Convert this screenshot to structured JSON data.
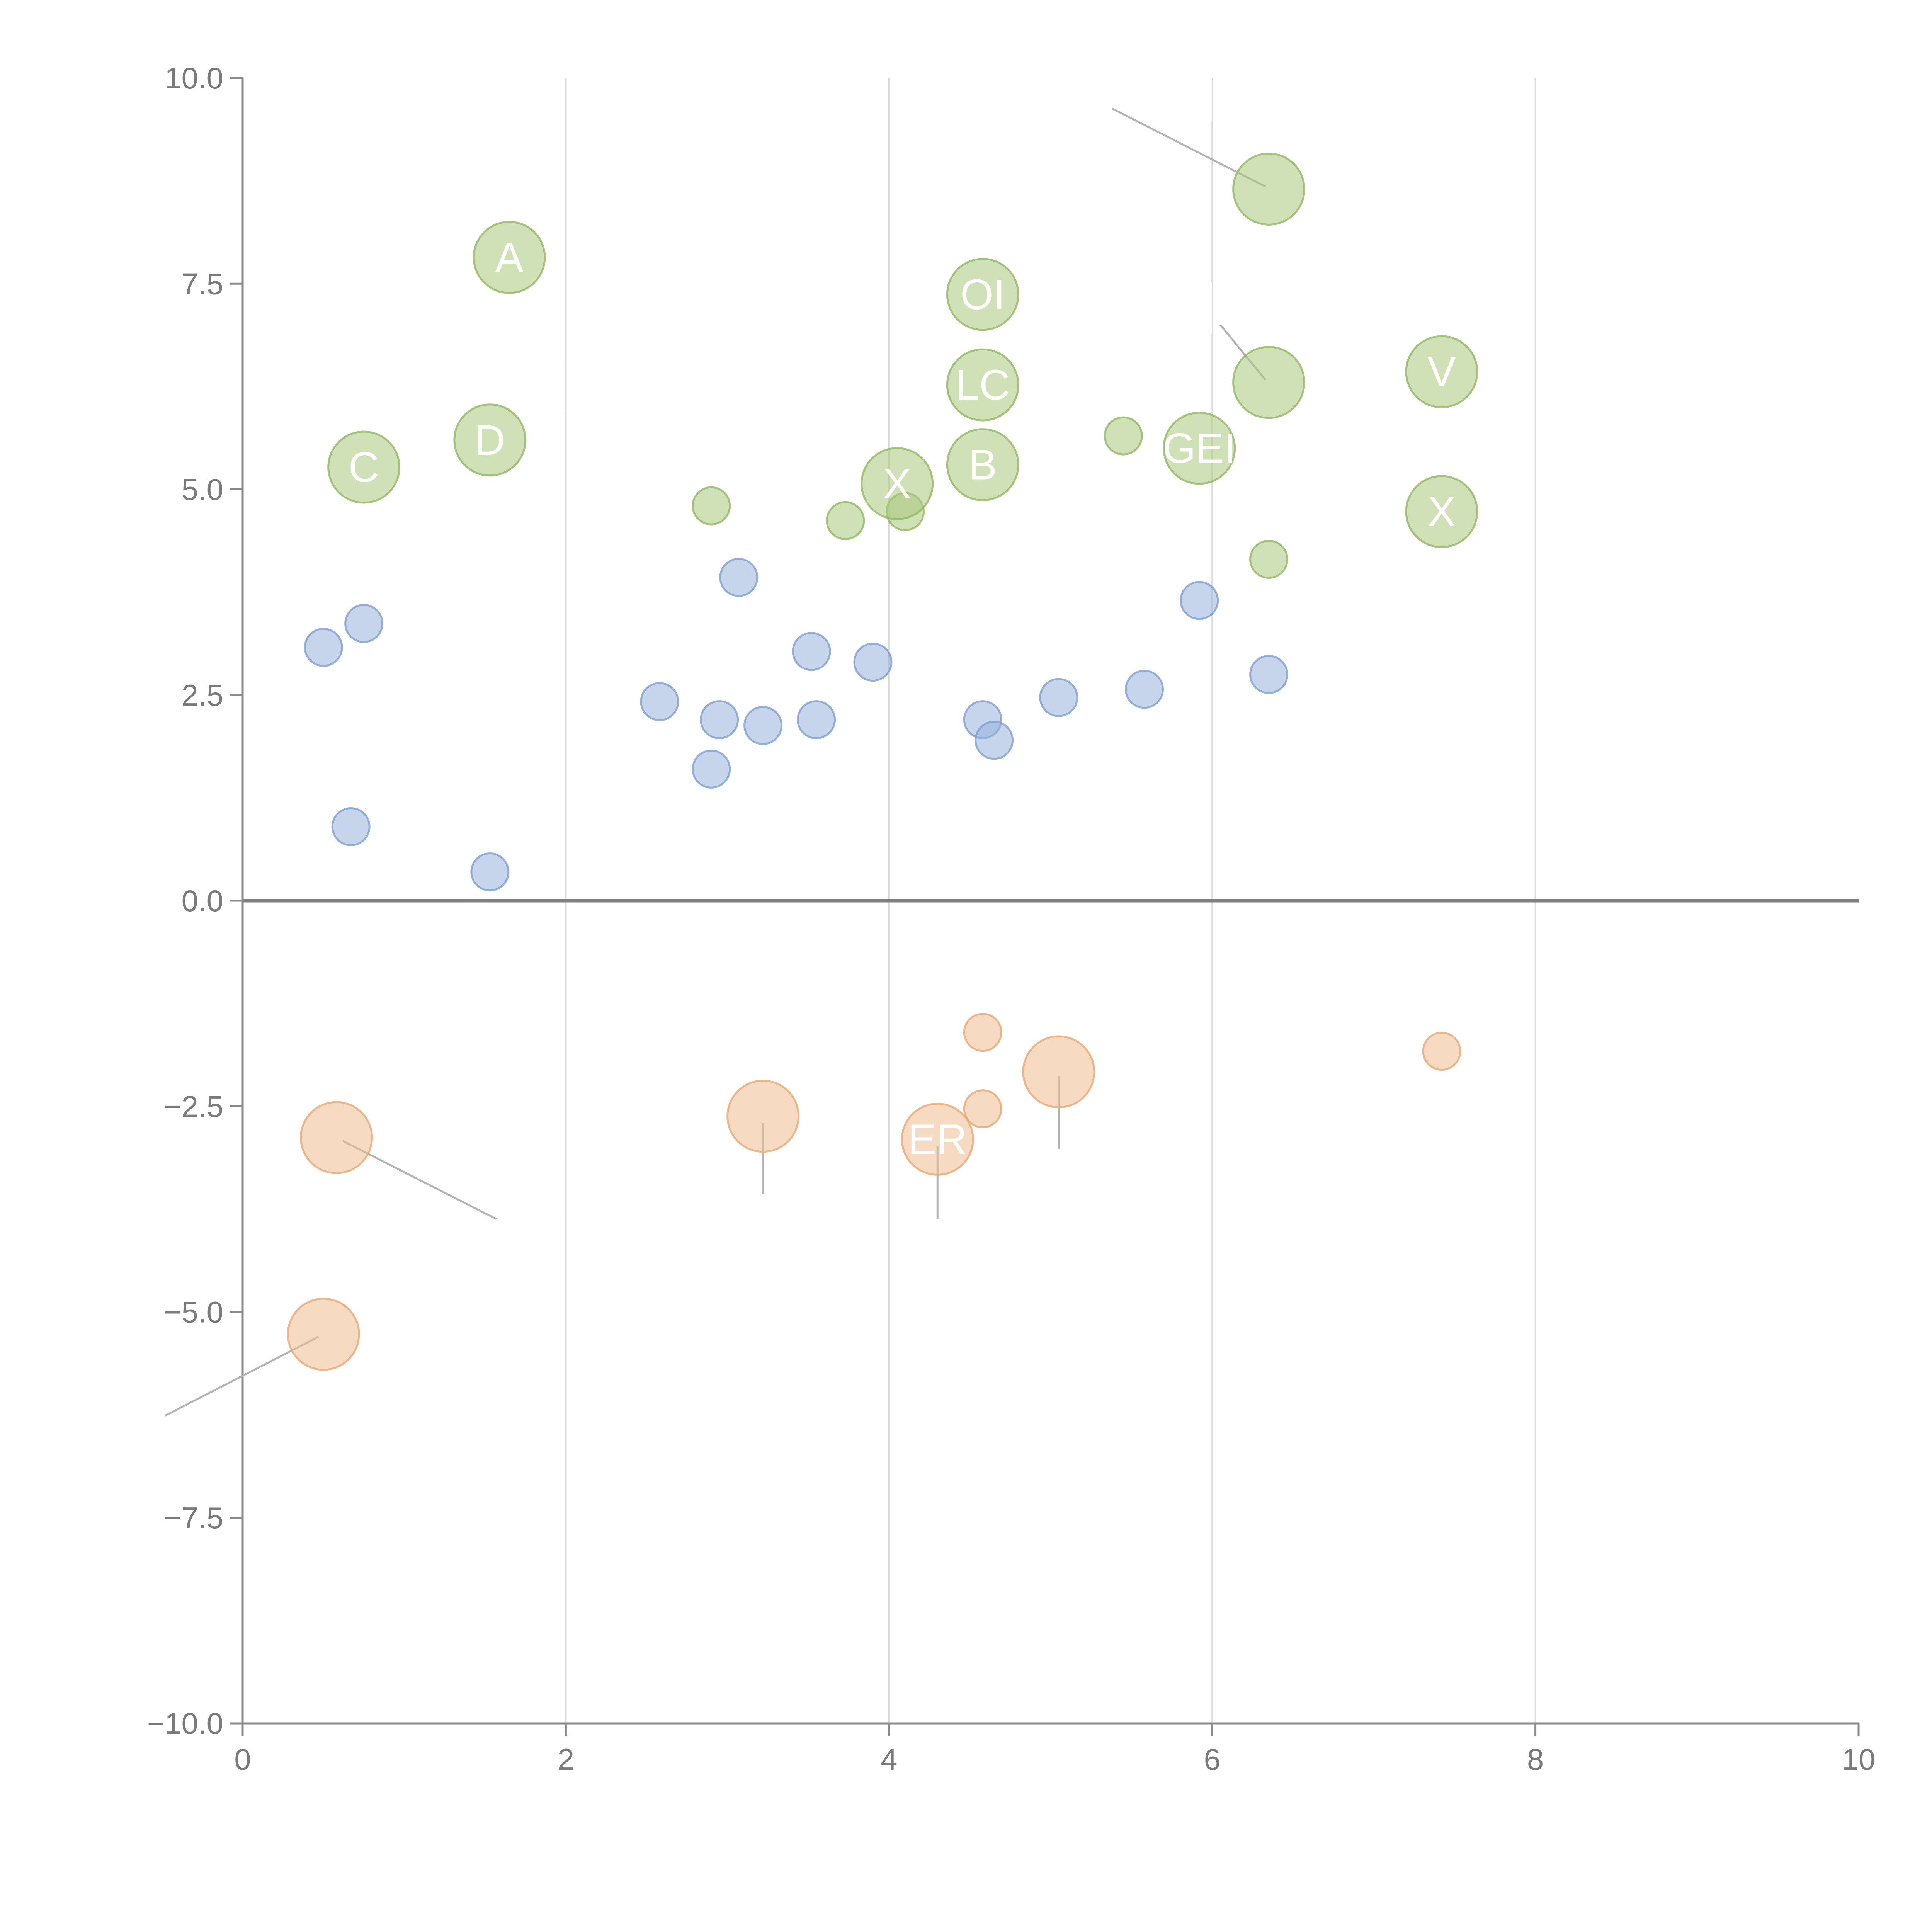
{
  "chart_data": {
    "type": "scatter",
    "title": "",
    "xlabel": "",
    "ylabel": "",
    "xlim": [
      0,
      10
    ],
    "ylim": [
      -10,
      10
    ],
    "x_ticks": [
      0,
      2,
      4,
      6,
      8,
      10
    ],
    "x_tick_labels": [
      "0",
      "2",
      "4",
      "6",
      "8",
      "10"
    ],
    "y_ticks": [
      10,
      7.5,
      5,
      2.5,
      0,
      -2.5,
      -5,
      -7.5,
      -10
    ],
    "y_tick_labels": [
      "10.0",
      "7.5",
      "5.0",
      "2.5",
      "0.0",
      "−2.5",
      "−5.0",
      "−7.5",
      "−10.0"
    ],
    "grid": "vertical",
    "zero_line": 0,
    "series": [
      {
        "name": "green",
        "color": "#a9c97c",
        "edge_color": "#92b763",
        "points": [
          {
            "x": 1.65,
            "y": 7.82,
            "size": "large",
            "label": "A"
          },
          {
            "x": 4.58,
            "y": 7.37,
            "size": "large",
            "label": "OI"
          },
          {
            "x": 6.35,
            "y": 8.65,
            "size": "large",
            "label": ""
          },
          {
            "x": 0.75,
            "y": 5.27,
            "size": "large",
            "label": "C"
          },
          {
            "x": 1.53,
            "y": 5.6,
            "size": "large",
            "label": "D"
          },
          {
            "x": 4.58,
            "y": 6.27,
            "size": "large",
            "label": "LC"
          },
          {
            "x": 6.35,
            "y": 6.3,
            "size": "large",
            "label": ""
          },
          {
            "x": 7.42,
            "y": 6.43,
            "size": "large",
            "label": "V"
          },
          {
            "x": 5.92,
            "y": 5.5,
            "size": "large",
            "label": "GEI"
          },
          {
            "x": 4.05,
            "y": 5.07,
            "size": "large",
            "label": "X"
          },
          {
            "x": 4.58,
            "y": 5.3,
            "size": "large",
            "label": "B"
          },
          {
            "x": 7.42,
            "y": 4.73,
            "size": "large",
            "label": "X"
          },
          {
            "x": 2.9,
            "y": 4.8,
            "size": "small",
            "label": ""
          },
          {
            "x": 3.73,
            "y": 4.62,
            "size": "small",
            "label": ""
          },
          {
            "x": 4.1,
            "y": 4.73,
            "size": "small",
            "label": ""
          },
          {
            "x": 5.45,
            "y": 5.65,
            "size": "small",
            "label": ""
          },
          {
            "x": 6.35,
            "y": 4.15,
            "size": "small",
            "label": ""
          }
        ]
      },
      {
        "name": "blue",
        "color": "#98b3dc",
        "edge_color": "#7e9fcf",
        "points": [
          {
            "x": 0.5,
            "y": 3.08,
            "size": "small",
            "label": ""
          },
          {
            "x": 0.75,
            "y": 3.37,
            "size": "small",
            "label": ""
          },
          {
            "x": 0.67,
            "y": 0.9,
            "size": "small",
            "label": ""
          },
          {
            "x": 1.53,
            "y": 0.35,
            "size": "small",
            "label": ""
          },
          {
            "x": 2.58,
            "y": 2.42,
            "size": "small",
            "label": ""
          },
          {
            "x": 2.9,
            "y": 1.6,
            "size": "small",
            "label": ""
          },
          {
            "x": 2.95,
            "y": 2.2,
            "size": "small",
            "label": ""
          },
          {
            "x": 3.07,
            "y": 3.93,
            "size": "small",
            "label": ""
          },
          {
            "x": 3.22,
            "y": 2.13,
            "size": "small",
            "label": ""
          },
          {
            "x": 3.52,
            "y": 3.03,
            "size": "small",
            "label": ""
          },
          {
            "x": 3.55,
            "y": 2.2,
            "size": "small",
            "label": ""
          },
          {
            "x": 3.9,
            "y": 2.9,
            "size": "small",
            "label": ""
          },
          {
            "x": 4.58,
            "y": 2.2,
            "size": "small",
            "label": ""
          },
          {
            "x": 4.65,
            "y": 1.95,
            "size": "small",
            "label": ""
          },
          {
            "x": 5.05,
            "y": 2.47,
            "size": "small",
            "label": ""
          },
          {
            "x": 5.58,
            "y": 2.57,
            "size": "small",
            "label": ""
          },
          {
            "x": 5.92,
            "y": 3.65,
            "size": "small",
            "label": ""
          },
          {
            "x": 6.35,
            "y": 2.75,
            "size": "small",
            "label": ""
          }
        ]
      },
      {
        "name": "orange",
        "color": "#f1bb8f",
        "edge_color": "#e8a775",
        "points": [
          {
            "x": 0.58,
            "y": -2.88,
            "size": "large",
            "label": ""
          },
          {
            "x": 0.5,
            "y": -5.27,
            "size": "large",
            "label": ""
          },
          {
            "x": 3.22,
            "y": -2.62,
            "size": "large",
            "label": ""
          },
          {
            "x": 4.3,
            "y": -2.9,
            "size": "large",
            "label": "ER"
          },
          {
            "x": 5.05,
            "y": -2.08,
            "size": "large",
            "label": ""
          },
          {
            "x": 4.58,
            "y": -1.6,
            "size": "small",
            "label": ""
          },
          {
            "x": 4.58,
            "y": -2.53,
            "size": "small",
            "label": ""
          },
          {
            "x": 7.42,
            "y": -1.83,
            "size": "small",
            "label": ""
          }
        ]
      }
    ],
    "leader_lines": [
      {
        "from": [
          5.38,
          9.63
        ],
        "to": [
          6.33,
          8.68
        ]
      },
      {
        "from": [
          6.05,
          7.0
        ],
        "to": [
          6.33,
          6.33
        ]
      },
      {
        "from": [
          0.62,
          -2.92
        ],
        "to": [
          1.57,
          -3.87
        ]
      },
      {
        "from": [
          -0.48,
          -6.26
        ],
        "to": [
          0.47,
          -5.3
        ]
      },
      {
        "from": [
          3.22,
          -2.7
        ],
        "to": [
          3.22,
          -3.57
        ]
      },
      {
        "from": [
          4.3,
          -2.98
        ],
        "to": [
          4.3,
          -3.87
        ]
      },
      {
        "from": [
          5.05,
          -2.13
        ],
        "to": [
          5.05,
          -3.02
        ]
      }
    ],
    "annotations": [
      {
        "text": "│",
        "x": 6.0,
        "y": 9.63
      },
      {
        "text": "│",
        "x": 6.0,
        "y": 7.05
      },
      {
        "text": "│",
        "x": 2.0,
        "y": 6.1
      },
      {
        "text": "│",
        "x": 2.0,
        "y": -3.65
      }
    ]
  }
}
